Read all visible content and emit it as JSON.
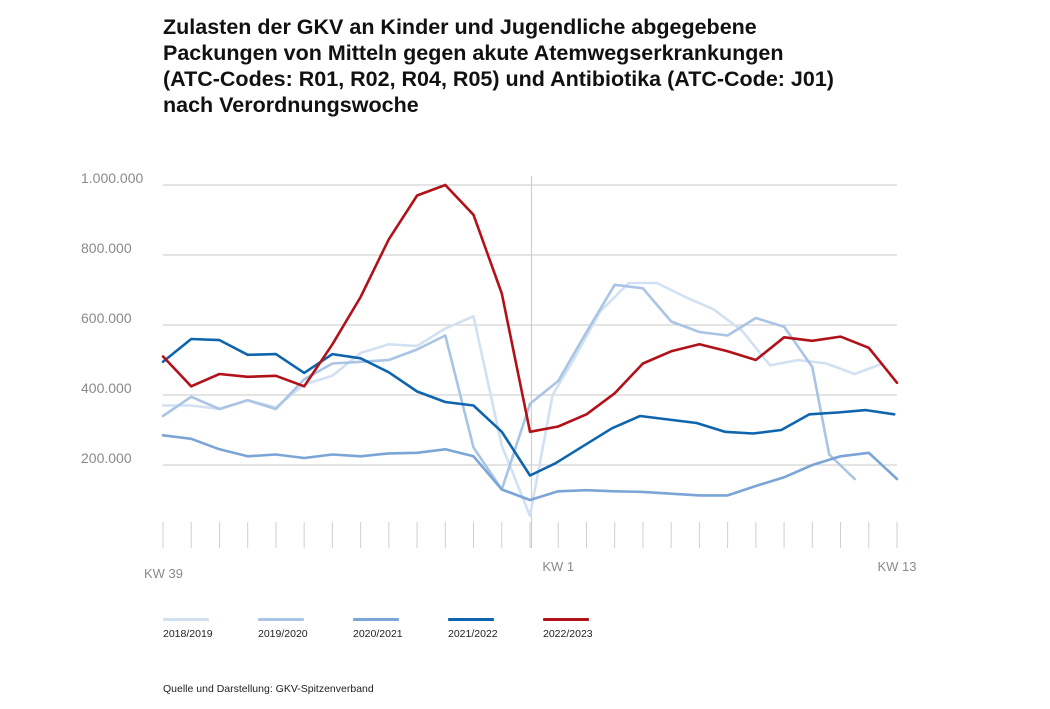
{
  "title_lines": [
    "Zulasten der GKV an Kinder und Jugendliche abgegebene",
    "Packungen von Mitteln gegen akute Atemwegserkrankungen",
    "(ATC-Codes: R01, R02, R04, R05) und Antibiotika (ATC-Code: J01)",
    "nach Verordnungswoche"
  ],
  "source": "Quelle und Darstellung: GKV-Spitzenverband",
  "chart_data": {
    "type": "line",
    "title": "Zulasten der GKV an Kinder und Jugendliche abgegebene Packungen von Mitteln gegen akute Atemwegserkrankungen (ATC-Codes: R01, R02, R04, R05) und Antibiotika (ATC-Code: J01) nach Verordnungswoche",
    "xlabel": "",
    "ylabel": "",
    "x": [
      39,
      40,
      41,
      42,
      43,
      44,
      45,
      46,
      47,
      48,
      49,
      50,
      51,
      52,
      1,
      2,
      3,
      4,
      5,
      6,
      7,
      8,
      9,
      10,
      11,
      12,
      13
    ],
    "x_tick_labels": [
      {
        "label": "KW 39",
        "index": 0
      },
      {
        "label": "KW 1",
        "index": 14
      },
      {
        "label": "KW 13",
        "index": 26
      }
    ],
    "y_ticks": [
      {
        "value": 200000,
        "label": "200.000"
      },
      {
        "value": 400000,
        "label": "400.000"
      },
      {
        "value": 600000,
        "label": "600.000"
      },
      {
        "value": 800000,
        "label": "800.000"
      },
      {
        "value": 1000000,
        "label": "1.000.000"
      }
    ],
    "ylim": [
      0,
      1000000
    ],
    "grid": true,
    "legend_position": "bottom",
    "series": [
      {
        "name": "2018/2019",
        "color": "#d2e1f2",
        "points": [
          [
            0,
            370000
          ],
          [
            1,
            370000
          ],
          [
            2,
            360000
          ],
          [
            3,
            385000
          ],
          [
            4,
            365000
          ],
          [
            5,
            430000
          ],
          [
            6,
            455000
          ],
          [
            7,
            520000
          ],
          [
            8,
            545000
          ],
          [
            9,
            540000
          ],
          [
            10,
            590000
          ],
          [
            11,
            625000
          ],
          [
            12,
            255000
          ],
          [
            13,
            55000
          ],
          [
            13.8,
            400000
          ],
          [
            14.5,
            495000
          ],
          [
            15.5,
            640000
          ],
          [
            16.5,
            720000
          ],
          [
            17.5,
            720000
          ],
          [
            18.5,
            680000
          ],
          [
            19.5,
            645000
          ],
          [
            20.5,
            585000
          ],
          [
            21.5,
            485000
          ],
          [
            22.5,
            500000
          ],
          [
            23.5,
            490000
          ],
          [
            24.5,
            460000
          ],
          [
            25.5,
            490000
          ]
        ]
      },
      {
        "name": "2019/2020",
        "color": "#a9c4e4",
        "points": [
          [
            0,
            340000
          ],
          [
            1,
            395000
          ],
          [
            2,
            360000
          ],
          [
            3,
            385000
          ],
          [
            4,
            360000
          ],
          [
            5,
            445000
          ],
          [
            6,
            490000
          ],
          [
            7,
            495000
          ],
          [
            8,
            500000
          ],
          [
            9,
            530000
          ],
          [
            10,
            570000
          ],
          [
            11,
            250000
          ],
          [
            12,
            130000
          ],
          [
            13,
            375000
          ],
          [
            14,
            440000
          ],
          [
            15,
            580000
          ],
          [
            16,
            715000
          ],
          [
            17,
            705000
          ],
          [
            18,
            610000
          ],
          [
            19,
            580000
          ],
          [
            20,
            570000
          ],
          [
            21,
            620000
          ],
          [
            22,
            595000
          ],
          [
            23,
            480000
          ],
          [
            23.6,
            230000
          ],
          [
            24.5,
            160000
          ]
        ]
      },
      {
        "name": "2020/2021",
        "color": "#7aa5d6",
        "points": [
          [
            0,
            285000
          ],
          [
            1,
            275000
          ],
          [
            2,
            245000
          ],
          [
            3,
            225000
          ],
          [
            4,
            230000
          ],
          [
            5,
            220000
          ],
          [
            6,
            230000
          ],
          [
            7,
            225000
          ],
          [
            8,
            233000
          ],
          [
            9,
            235000
          ],
          [
            10,
            245000
          ],
          [
            11,
            225000
          ],
          [
            12,
            130000
          ],
          [
            13,
            100000
          ],
          [
            14,
            125000
          ],
          [
            15,
            128000
          ],
          [
            16,
            125000
          ],
          [
            17,
            123000
          ],
          [
            18,
            118000
          ],
          [
            19,
            113000
          ],
          [
            20,
            113000
          ],
          [
            21,
            140000
          ],
          [
            22,
            165000
          ],
          [
            23,
            200000
          ],
          [
            24,
            225000
          ],
          [
            25,
            235000
          ],
          [
            26,
            160000
          ]
        ]
      },
      {
        "name": "2021/2022",
        "color": "#0f65ad",
        "points": [
          [
            0,
            495000
          ],
          [
            1,
            560000
          ],
          [
            2,
            557000
          ],
          [
            3,
            515000
          ],
          [
            4,
            517000
          ],
          [
            5,
            463000
          ],
          [
            6,
            517000
          ],
          [
            7,
            505000
          ],
          [
            8,
            465000
          ],
          [
            9,
            410000
          ],
          [
            10,
            380000
          ],
          [
            11,
            370000
          ],
          [
            12,
            295000
          ],
          [
            13,
            170000
          ],
          [
            13.9,
            205000
          ],
          [
            14.9,
            255000
          ],
          [
            15.9,
            305000
          ],
          [
            16.9,
            340000
          ],
          [
            17.9,
            330000
          ],
          [
            18.9,
            320000
          ],
          [
            19.9,
            295000
          ],
          [
            20.9,
            290000
          ],
          [
            21.9,
            300000
          ],
          [
            22.9,
            345000
          ],
          [
            23.9,
            350000
          ],
          [
            24.9,
            357000
          ],
          [
            25.9,
            345000
          ]
        ]
      },
      {
        "name": "2022/2023",
        "color": "#b11219",
        "points": [
          [
            0,
            510000
          ],
          [
            1,
            425000
          ],
          [
            2,
            460000
          ],
          [
            3,
            452000
          ],
          [
            4,
            455000
          ],
          [
            5,
            425000
          ],
          [
            6,
            545000
          ],
          [
            7,
            680000
          ],
          [
            8,
            845000
          ],
          [
            9,
            970000
          ],
          [
            10,
            1000000
          ],
          [
            11,
            915000
          ],
          [
            12,
            690000
          ],
          [
            13,
            295000
          ],
          [
            14,
            310000
          ],
          [
            15,
            345000
          ],
          [
            16,
            405000
          ],
          [
            17,
            490000
          ],
          [
            18,
            525000
          ],
          [
            19,
            545000
          ],
          [
            20,
            525000
          ],
          [
            21,
            500000
          ],
          [
            22,
            565000
          ],
          [
            23,
            555000
          ],
          [
            24,
            567000
          ],
          [
            25,
            535000
          ],
          [
            26,
            435000
          ]
        ]
      }
    ]
  }
}
